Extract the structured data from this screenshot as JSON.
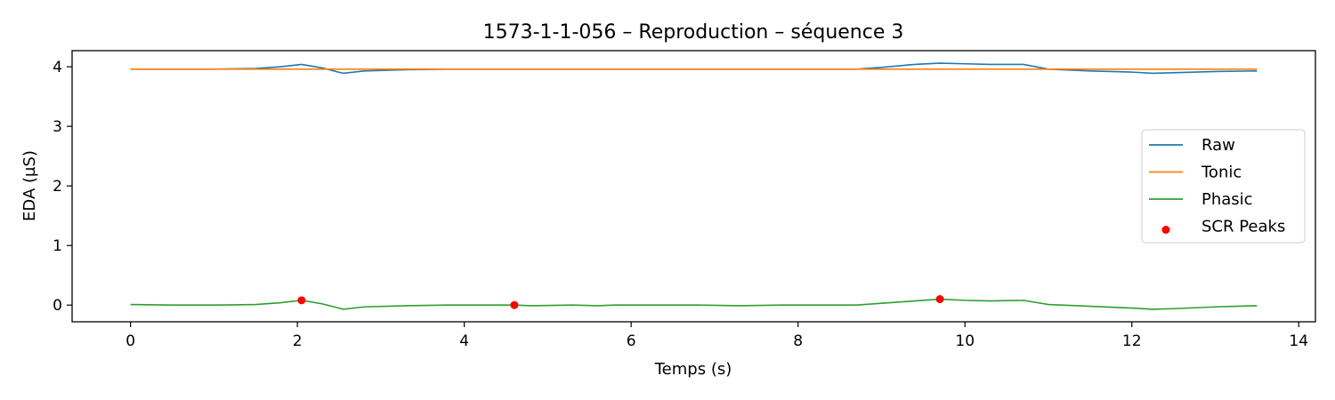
{
  "chart_data": {
    "type": "line",
    "title": "1573-1-1-056 – Reproduction – séquence 3",
    "xlabel": "Temps (s)",
    "ylabel": "EDA (µS)",
    "xlim": [
      -0.7,
      14.2
    ],
    "ylim": [
      -0.28,
      4.27
    ],
    "x_ticks": [
      0,
      2,
      4,
      6,
      8,
      10,
      12,
      14
    ],
    "x_tick_labels": [
      "0",
      "2",
      "4",
      "6",
      "8",
      "10",
      "12",
      "14"
    ],
    "y_ticks": [
      0,
      1,
      2,
      3,
      4
    ],
    "y_tick_labels": [
      "0",
      "1",
      "2",
      "3",
      "4"
    ],
    "grid": false,
    "legend_position": "center-right",
    "series": [
      {
        "name": "Raw",
        "color": "#1f77b4",
        "x": [
          0,
          0.5,
          1.0,
          1.5,
          1.8,
          2.05,
          2.3,
          2.55,
          2.8,
          3.3,
          3.8,
          4.3,
          4.8,
          5.3,
          5.8,
          6.3,
          6.8,
          7.3,
          7.8,
          8.3,
          8.7,
          9.0,
          9.4,
          9.7,
          10.0,
          10.3,
          10.7,
          11.0,
          11.5,
          12.0,
          12.25,
          12.5,
          13.0,
          13.5
        ],
        "y": [
          3.96,
          3.96,
          3.96,
          3.97,
          4.0,
          4.04,
          3.98,
          3.89,
          3.93,
          3.95,
          3.96,
          3.96,
          3.96,
          3.96,
          3.96,
          3.96,
          3.96,
          3.96,
          3.96,
          3.96,
          3.96,
          3.99,
          4.04,
          4.06,
          4.05,
          4.04,
          4.04,
          3.96,
          3.93,
          3.91,
          3.89,
          3.9,
          3.92,
          3.93
        ]
      },
      {
        "name": "Tonic",
        "color": "#ff7f0e",
        "x": [
          0,
          2,
          4,
          6,
          8,
          10,
          12,
          13.5
        ],
        "y": [
          3.96,
          3.96,
          3.96,
          3.96,
          3.96,
          3.96,
          3.96,
          3.96
        ]
      },
      {
        "name": "Phasic",
        "color": "#2ca02c",
        "x": [
          0,
          0.5,
          1.0,
          1.5,
          1.8,
          2.05,
          2.3,
          2.55,
          2.8,
          3.3,
          3.8,
          4.3,
          4.6,
          4.8,
          5.3,
          5.6,
          5.8,
          6.3,
          6.8,
          7.3,
          7.8,
          8.3,
          8.7,
          9.0,
          9.4,
          9.7,
          10.0,
          10.3,
          10.7,
          11.0,
          11.5,
          12.0,
          12.25,
          12.5,
          13.0,
          13.5
        ],
        "y": [
          0.01,
          0.0,
          0.0,
          0.01,
          0.04,
          0.08,
          0.02,
          -0.07,
          -0.03,
          -0.01,
          0.0,
          0.0,
          0.0,
          -0.01,
          0.0,
          -0.01,
          0.0,
          0.0,
          0.0,
          -0.01,
          0.0,
          0.0,
          0.0,
          0.03,
          0.07,
          0.1,
          0.08,
          0.07,
          0.08,
          0.01,
          -0.02,
          -0.05,
          -0.07,
          -0.06,
          -0.03,
          -0.01
        ]
      }
    ],
    "scatter": {
      "name": "SCR Peaks",
      "color": "#ff0000",
      "points": [
        {
          "x": 2.05,
          "y": 0.08
        },
        {
          "x": 4.6,
          "y": 0.0
        },
        {
          "x": 9.7,
          "y": 0.1
        }
      ]
    }
  }
}
